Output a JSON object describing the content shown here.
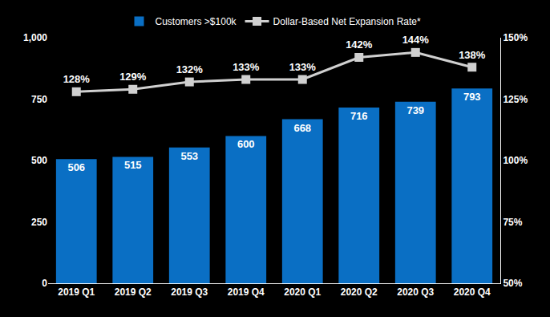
{
  "chart_data": {
    "type": "bar",
    "categories": [
      "2019 Q1",
      "2019 Q2",
      "2019 Q3",
      "2019 Q4",
      "2020 Q1",
      "2020 Q2",
      "2020 Q3",
      "2020 Q4"
    ],
    "series": [
      {
        "name": "Customers >$100k",
        "type": "bar",
        "color": "#0a6fc4",
        "values": [
          506,
          515,
          553,
          600,
          668,
          716,
          739,
          793
        ]
      },
      {
        "name": "Dollar-Based Net Expansion Rate*",
        "type": "line",
        "axis": "y2",
        "color": "#d0d0d0",
        "marker": "square",
        "values": [
          128,
          129,
          132,
          133,
          133,
          142,
          144,
          138
        ],
        "value_labels": [
          "128%",
          "129%",
          "132%",
          "133%",
          "133%",
          "142%",
          "144%",
          "138%"
        ]
      }
    ],
    "ylim": [
      0,
      1000
    ],
    "yticks": [
      0,
      250,
      500,
      750,
      {
        "value": 1000,
        "label": "1,000"
      }
    ],
    "y2lim": [
      50,
      150
    ],
    "y2ticks": [
      {
        "value": 50,
        "label": "50%"
      },
      {
        "value": 75,
        "label": "75%"
      },
      {
        "value": 100,
        "label": "100%"
      },
      {
        "value": 125,
        "label": "125%"
      },
      {
        "value": 150,
        "label": "150%"
      }
    ],
    "data_labels": true,
    "legend": "top",
    "grid": false
  }
}
